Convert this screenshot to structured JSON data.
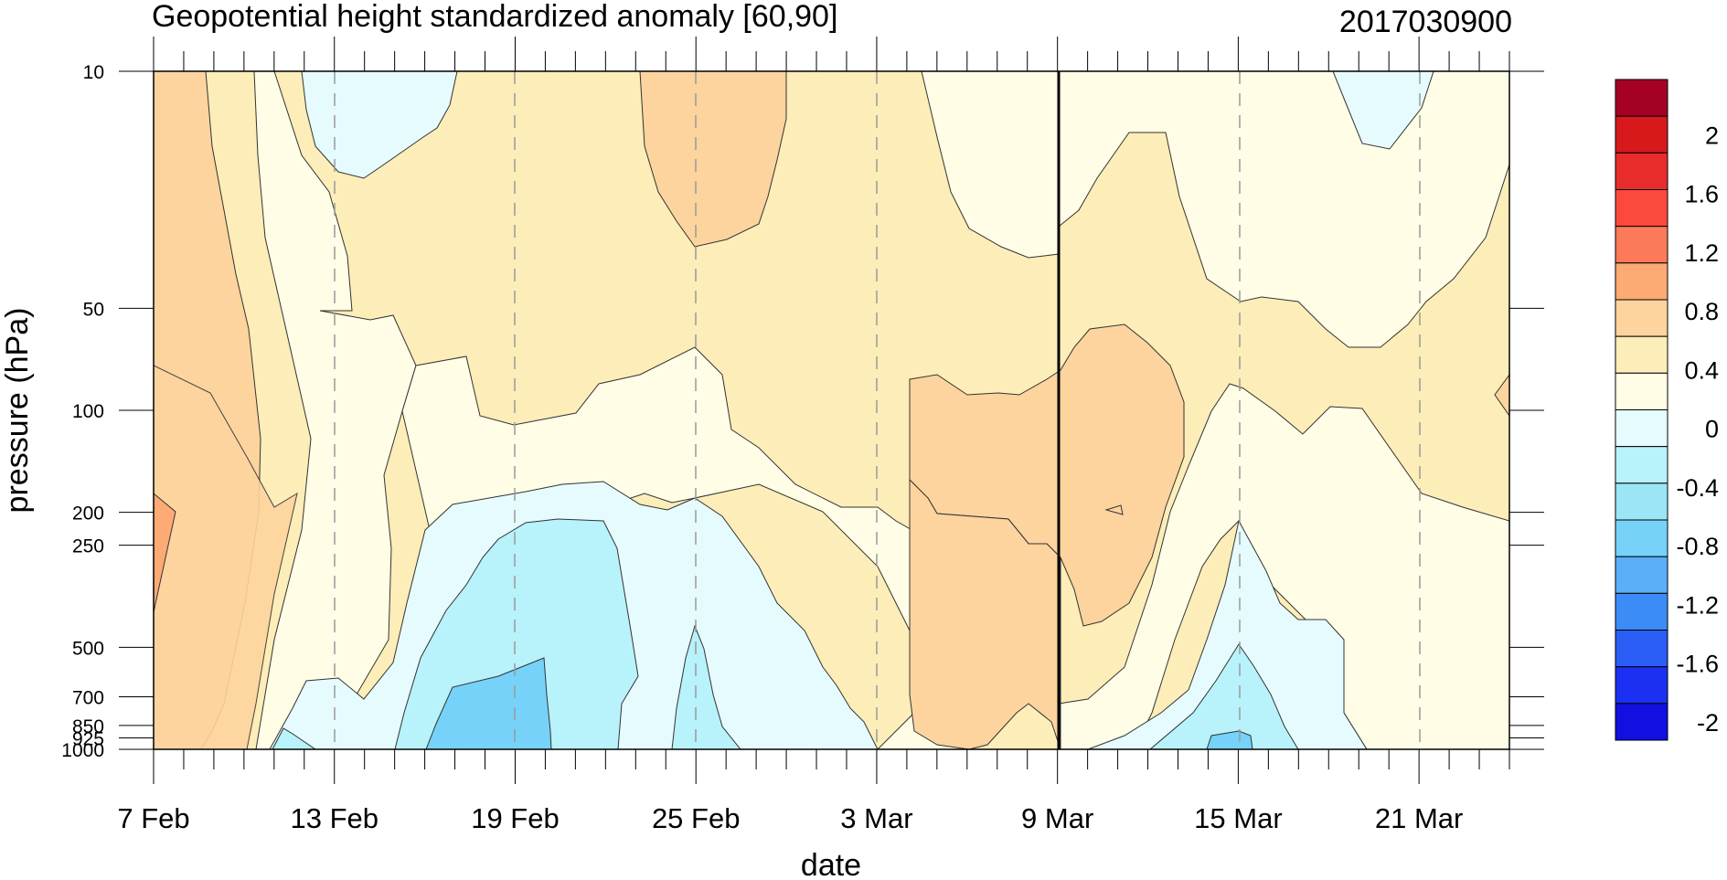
{
  "chart_data": {
    "type": "heatmap",
    "title": "Geopotential height standardized anomaly [60,90]",
    "run_label": "2017030900",
    "xlabel": "date",
    "ylabel": "pressure (hPa)",
    "x_ticks": [
      "7 Feb",
      "13 Feb",
      "19 Feb",
      "25 Feb",
      "3 Mar",
      "9 Mar",
      "15 Mar",
      "21 Mar"
    ],
    "x_range": [
      "2017-02-07",
      "2017-03-24"
    ],
    "y_ticks": [
      "10",
      "50",
      "100",
      "200",
      "250",
      "500",
      "700",
      "850",
      "925",
      "1000"
    ],
    "y_range": [
      1000,
      10
    ],
    "y_scale": "log",
    "y_reversed": true,
    "vertical_marker": "2017-03-09",
    "gridlines": "vertical dashed at labelled dates",
    "colorbar": {
      "labels": [
        "2",
        "1.6",
        "1.2",
        "0.8",
        "0.4",
        "0",
        "-0.4",
        "-0.8",
        "-1.2",
        "-1.6",
        "-2"
      ],
      "colors": [
        "#a50026",
        "#d7191c",
        "#e82c2c",
        "#fb4a3d",
        "#fc7a57",
        "#fdaa74",
        "#fdd49e",
        "#fdedb8",
        "#fffde6",
        "#e6fbfd",
        "#b8f2fb",
        "#9ae6f7",
        "#76d2f8",
        "#5aaff8",
        "#3c8cf7",
        "#2a5cf6",
        "#1b30f3",
        "#1210e0"
      ],
      "colors_note": "segments listed top to bottom"
    },
    "regions": [
      {
        "value": 0.4,
        "color": "#fdedb8"
      },
      {
        "value": 0.8,
        "color": "#fdd49e"
      },
      {
        "value": 1.0,
        "color": "#fdaa74"
      },
      {
        "value": 0.1,
        "color": "#fffde6"
      },
      {
        "value": -0.1,
        "color": "#e6fbfd"
      },
      {
        "value": -0.5,
        "color": "#b8f2fb"
      },
      {
        "value": -0.7,
        "color": "#9ae6f7"
      },
      {
        "value": -0.9,
        "color": "#76d2f8"
      }
    ]
  }
}
